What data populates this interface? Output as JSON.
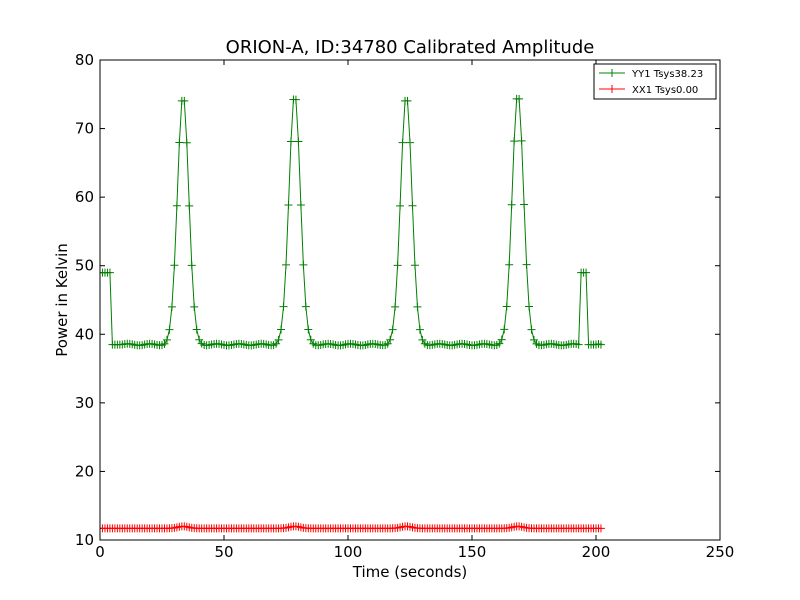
{
  "chart_data": {
    "type": "line",
    "title": "ORION-A, ID:34780 Calibrated Amplitude",
    "xlabel": "Time (seconds)",
    "ylabel": "Power in Kelvin",
    "xlim": [
      0,
      250
    ],
    "ylim": [
      10,
      80
    ],
    "xticks": [
      "0",
      "50",
      "100",
      "150",
      "200",
      "250"
    ],
    "yticks": [
      "10",
      "20",
      "30",
      "40",
      "50",
      "60",
      "70",
      "80"
    ],
    "legend_position": "top-right",
    "grid": false,
    "series": [
      {
        "name": "YY1 Tsys38.23",
        "color": "#008000",
        "marker": "plus",
        "baseline": 38.5,
        "peaks": [
          {
            "center": 33.5,
            "height": 75.0
          },
          {
            "center": 78.5,
            "height": 75.2
          },
          {
            "center": 123.5,
            "height": 75.0
          },
          {
            "center": 168.5,
            "height": 75.3
          }
        ],
        "peak_sigma": 2.3,
        "segments": [
          {
            "x_start": 0,
            "x_end": 4,
            "value": 49.0
          },
          {
            "x_start": 4.6,
            "x_end": 8.5,
            "value": 38.5
          },
          {
            "x_start": 194,
            "x_end": 196,
            "value": 49.0
          },
          {
            "x_start": 196.5,
            "x_end": 200.5,
            "value": 38.5
          }
        ],
        "x_end": 202
      },
      {
        "name": "XX1 Tsys0.00",
        "color": "#ff0000",
        "marker": "plus",
        "baseline": 11.7,
        "bump_centers": [
          33.5,
          78.5,
          123.5,
          168.5
        ],
        "bump_height": 0.3,
        "x_end": 202
      }
    ]
  }
}
